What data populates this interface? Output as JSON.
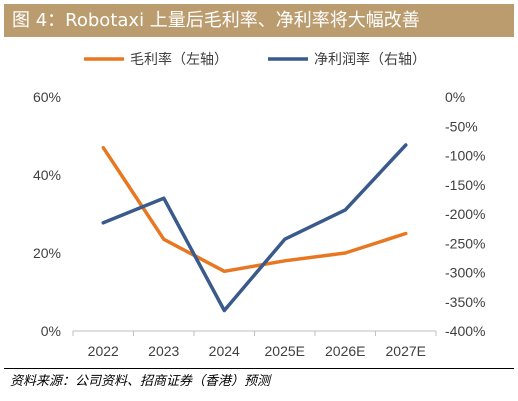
{
  "header": {
    "title": "图 4：Robotaxi 上量后毛利率、净利率将大幅改善"
  },
  "footer": {
    "source": "资料来源：公司资料、招商证券（香港）预测"
  },
  "chart_data": {
    "type": "line",
    "categories": [
      "2022",
      "2023",
      "2024",
      "2025E",
      "2026E",
      "2027E"
    ],
    "series": [
      {
        "name": "毛利率（左轴）",
        "axis": "left",
        "color": "#e87722",
        "values": [
          47,
          23.5,
          15.3,
          18,
          20,
          25
        ]
      },
      {
        "name": "净利润率（右轴）",
        "axis": "right",
        "color": "#3a5a8c",
        "values": [
          -215,
          -173,
          -365,
          -243,
          -193,
          -82
        ]
      }
    ],
    "left_axis": {
      "ylim": [
        0,
        60
      ],
      "ticks": [
        0,
        20,
        40,
        60
      ],
      "tick_labels": [
        "0%",
        "20%",
        "40%",
        "60%"
      ]
    },
    "right_axis": {
      "ylim": [
        -400,
        0
      ],
      "ticks": [
        0,
        -50,
        -100,
        -150,
        -200,
        -250,
        -300,
        -350,
        -400
      ],
      "tick_labels": [
        "0%",
        "-50%",
        "-100%",
        "-150%",
        "-200%",
        "-250%",
        "-300%",
        "-350%",
        "-400%"
      ]
    },
    "grid": false,
    "legend_position": "top"
  }
}
